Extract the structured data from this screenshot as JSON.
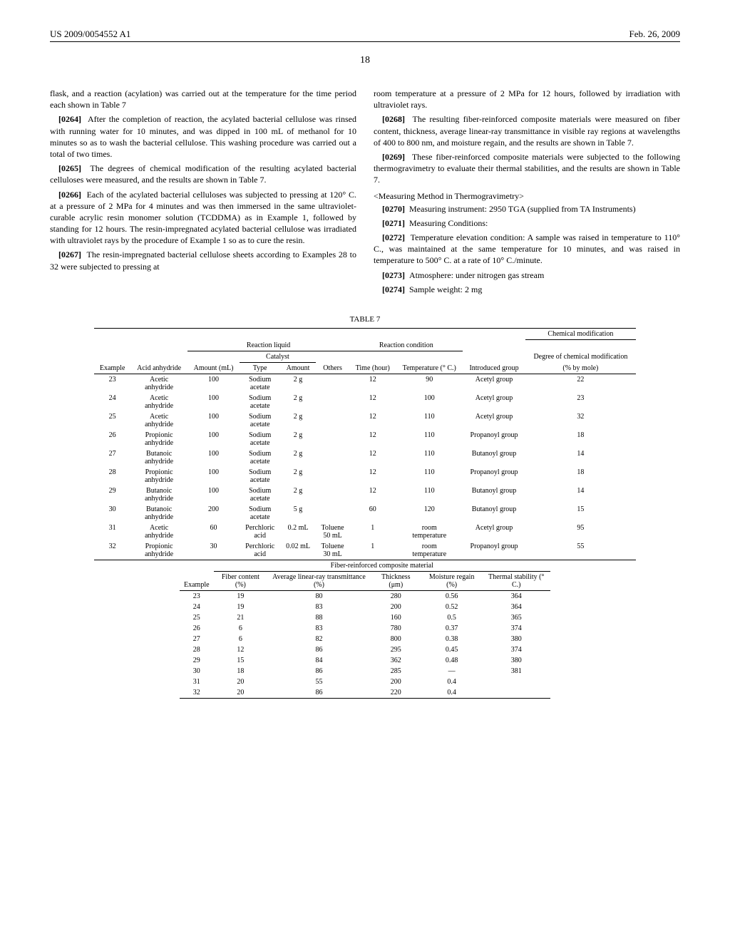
{
  "header": {
    "patent_id": "US 2009/0054552 A1",
    "date": "Feb. 26, 2009",
    "page_number": "18"
  },
  "left_column": {
    "p0_cont": "flask, and a reaction (acylation) was carried out at the temperature for the time period each shown in Table 7",
    "p0264_num": "[0264]",
    "p0264": "After the completion of reaction, the acylated bacterial cellulose was rinsed with running water for 10 minutes, and was dipped in 100 mL of methanol for 10 minutes so as to wash the bacterial cellulose. This washing procedure was carried out a total of two times.",
    "p0265_num": "[0265]",
    "p0265": "The degrees of chemical modification of the resulting acylated bacterial celluloses were measured, and the results are shown in Table 7.",
    "p0266_num": "[0266]",
    "p0266": "Each of the acylated bacterial celluloses was subjected to pressing at 120° C. at a pressure of 2 MPa for 4 minutes and was then immersed in the same ultraviolet-curable acrylic resin monomer solution (TCDDMA) as in Example 1, followed by standing for 12 hours. The resin-impregnated acylated bacterial cellulose was irradiated with ultraviolet rays by the procedure of Example 1 so as to cure the resin.",
    "p0267_num": "[0267]",
    "p0267": "The resin-impregnated bacterial cellulose sheets according to Examples 28 to 32 were subjected to pressing at"
  },
  "right_column": {
    "p267_cont": "room temperature at a pressure of 2 MPa for 12 hours, followed by irradiation with ultraviolet rays.",
    "p0268_num": "[0268]",
    "p0268": "The resulting fiber-reinforced composite materials were measured on fiber content, thickness, average linear-ray transmittance in visible ray regions at wavelengths of 400 to 800 nm, and moisture regain, and the results are shown in Table 7.",
    "p0269_num": "[0269]",
    "p0269": "These fiber-reinforced composite materials were subjected to the following thermogravimetry to evaluate their thermal stabilities, and the results are shown in Table 7.",
    "meas_head": "<Measuring Method in Thermogravimetry>",
    "p0270_num": "[0270]",
    "p0270": "Measuring instrument: 2950 TGA (supplied from TA Instruments)",
    "p0271_num": "[0271]",
    "p0271": "Measuring Conditions:",
    "p0272_num": "[0272]",
    "p0272": "Temperature elevation condition: A sample was raised in temperature to 110° C., was maintained at the same temperature for 10 minutes, and was raised in temperature to 500° C. at a rate of 10° C./minute.",
    "p0273_num": "[0273]",
    "p0273": "Atmosphere: under nitrogen gas stream",
    "p0274_num": "[0274]",
    "p0274": "Sample weight: 2 mg"
  },
  "table7": {
    "label": "TABLE 7",
    "group_headers": {
      "reaction_liquid": "Reaction liquid",
      "catalyst": "Catalyst",
      "reaction_condition": "Reaction condition",
      "chem_mod": "Chemical modification",
      "degree_header": "Degree of chemical modification",
      "fiber_composite": "Fiber-reinforced composite material"
    },
    "columns1": {
      "example": "Example",
      "acid_anhydride": "Acid anhydride",
      "amount_ml": "Amount (mL)",
      "cat_type": "Type",
      "cat_amount": "Amount",
      "others": "Others",
      "time": "Time (hour)",
      "temperature": "Temperature (° C.)",
      "introduced_group": "Introduced group",
      "degree": "(% by mole)"
    },
    "rows1": [
      {
        "ex": "23",
        "acid": "Acetic anhydride",
        "amt": "100",
        "ctype": "Sodium acetate",
        "camt": "2 g",
        "oth": "",
        "time": "12",
        "temp": "90",
        "grp": "Acetyl group",
        "deg": "22"
      },
      {
        "ex": "24",
        "acid": "Acetic anhydride",
        "amt": "100",
        "ctype": "Sodium acetate",
        "camt": "2 g",
        "oth": "",
        "time": "12",
        "temp": "100",
        "grp": "Acetyl group",
        "deg": "23"
      },
      {
        "ex": "25",
        "acid": "Acetic anhydride",
        "amt": "100",
        "ctype": "Sodium acetate",
        "camt": "2 g",
        "oth": "",
        "time": "12",
        "temp": "110",
        "grp": "Acetyl group",
        "deg": "32"
      },
      {
        "ex": "26",
        "acid": "Propionic anhydride",
        "amt": "100",
        "ctype": "Sodium acetate",
        "camt": "2 g",
        "oth": "",
        "time": "12",
        "temp": "110",
        "grp": "Propanoyl group",
        "deg": "18"
      },
      {
        "ex": "27",
        "acid": "Butanoic anhydride",
        "amt": "100",
        "ctype": "Sodium acetate",
        "camt": "2 g",
        "oth": "",
        "time": "12",
        "temp": "110",
        "grp": "Butanoyl group",
        "deg": "14"
      },
      {
        "ex": "28",
        "acid": "Propionic anhydride",
        "amt": "100",
        "ctype": "Sodium acetate",
        "camt": "2 g",
        "oth": "",
        "time": "12",
        "temp": "110",
        "grp": "Propanoyl group",
        "deg": "18"
      },
      {
        "ex": "29",
        "acid": "Butanoic anhydride",
        "amt": "100",
        "ctype": "Sodium acetate",
        "camt": "2 g",
        "oth": "",
        "time": "12",
        "temp": "110",
        "grp": "Butanoyl group",
        "deg": "14"
      },
      {
        "ex": "30",
        "acid": "Butanoic anhydride",
        "amt": "200",
        "ctype": "Sodium acetate",
        "camt": "5 g",
        "oth": "",
        "time": "60",
        "temp": "120",
        "grp": "Butanoyl group",
        "deg": "15"
      },
      {
        "ex": "31",
        "acid": "Acetic anhydride",
        "amt": "60",
        "ctype": "Perchloric acid",
        "camt": "0.2 mL",
        "oth": "Toluene 50 mL",
        "time": "1",
        "temp": "room temperature",
        "grp": "Acetyl group",
        "deg": "95"
      },
      {
        "ex": "32",
        "acid": "Propionic anhydride",
        "amt": "30",
        "ctype": "Perchloric acid",
        "camt": "0.02 mL",
        "oth": "Toluene 30 mL",
        "time": "1",
        "temp": "room temperature",
        "grp": "Propanoyl group",
        "deg": "55"
      }
    ],
    "columns2": {
      "example": "Example",
      "fiber_content": "Fiber content (%)",
      "avg_trans": "Average linear-ray transmittance (%)",
      "thickness": "Thickness (μm)",
      "moisture": "Moisture regain (%)",
      "thermal": "Thermal stability (° C.)"
    },
    "rows2": [
      {
        "ex": "23",
        "fc": "19",
        "tr": "80",
        "th": "280",
        "mr": "0.56",
        "ts": "364"
      },
      {
        "ex": "24",
        "fc": "19",
        "tr": "83",
        "th": "200",
        "mr": "0.52",
        "ts": "364"
      },
      {
        "ex": "25",
        "fc": "21",
        "tr": "88",
        "th": "160",
        "mr": "0.5",
        "ts": "365"
      },
      {
        "ex": "26",
        "fc": "6",
        "tr": "83",
        "th": "780",
        "mr": "0.37",
        "ts": "374"
      },
      {
        "ex": "27",
        "fc": "6",
        "tr": "82",
        "th": "800",
        "mr": "0.38",
        "ts": "380"
      },
      {
        "ex": "28",
        "fc": "12",
        "tr": "86",
        "th": "295",
        "mr": "0.45",
        "ts": "374"
      },
      {
        "ex": "29",
        "fc": "15",
        "tr": "84",
        "th": "362",
        "mr": "0.48",
        "ts": "380"
      },
      {
        "ex": "30",
        "fc": "18",
        "tr": "86",
        "th": "285",
        "mr": "—",
        "ts": "381"
      },
      {
        "ex": "31",
        "fc": "20",
        "tr": "55",
        "th": "200",
        "mr": "0.4",
        "ts": ""
      },
      {
        "ex": "32",
        "fc": "20",
        "tr": "86",
        "th": "220",
        "mr": "0.4",
        "ts": ""
      }
    ]
  }
}
